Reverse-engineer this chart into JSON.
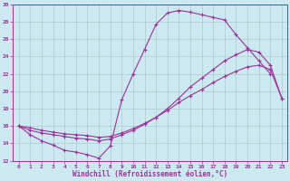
{
  "xlabel": "Windchill (Refroidissement éolien,°C)",
  "bg_color": "#cce8f0",
  "grid_color": "#aacccc",
  "line_color": "#993399",
  "xlim": [
    -0.5,
    23.5
  ],
  "ylim": [
    12,
    30
  ],
  "xticks": [
    0,
    1,
    2,
    3,
    4,
    5,
    6,
    7,
    8,
    9,
    10,
    11,
    12,
    13,
    14,
    15,
    16,
    17,
    18,
    19,
    20,
    21,
    22,
    23
  ],
  "yticks": [
    12,
    14,
    16,
    18,
    20,
    22,
    24,
    26,
    28,
    30
  ],
  "series1_x": [
    0,
    1,
    2,
    3,
    4,
    5,
    6,
    7,
    8,
    9,
    10,
    11,
    12,
    13,
    14,
    15,
    16,
    17,
    18,
    19,
    20,
    21,
    22
  ],
  "series1_y": [
    16.0,
    15.0,
    14.3,
    13.8,
    13.2,
    13.0,
    12.7,
    12.3,
    13.7,
    19.0,
    22.0,
    24.8,
    27.7,
    29.0,
    29.3,
    29.1,
    28.8,
    28.5,
    28.2,
    26.5,
    25.0,
    23.5,
    22.0
  ],
  "series2_x": [
    0,
    1,
    2,
    3,
    4,
    5,
    6,
    7,
    8,
    9,
    10,
    11,
    12,
    13,
    14,
    15,
    16,
    17,
    18,
    19,
    20,
    21,
    22,
    23
  ],
  "series2_y": [
    16.0,
    15.5,
    15.2,
    15.0,
    14.8,
    14.6,
    14.5,
    14.3,
    14.5,
    15.0,
    15.5,
    16.2,
    17.0,
    18.0,
    19.2,
    20.5,
    21.5,
    22.5,
    23.5,
    24.2,
    24.8,
    24.5,
    23.0,
    19.2
  ],
  "series3_x": [
    0,
    1,
    2,
    3,
    4,
    5,
    6,
    7,
    8,
    9,
    10,
    11,
    12,
    13,
    14,
    15,
    16,
    17,
    18,
    19,
    20,
    21,
    22,
    23
  ],
  "series3_y": [
    16.0,
    15.8,
    15.5,
    15.3,
    15.1,
    15.0,
    14.9,
    14.7,
    14.8,
    15.2,
    15.7,
    16.3,
    17.0,
    17.8,
    18.7,
    19.5,
    20.2,
    21.0,
    21.7,
    22.3,
    22.8,
    23.0,
    22.5,
    19.2
  ]
}
